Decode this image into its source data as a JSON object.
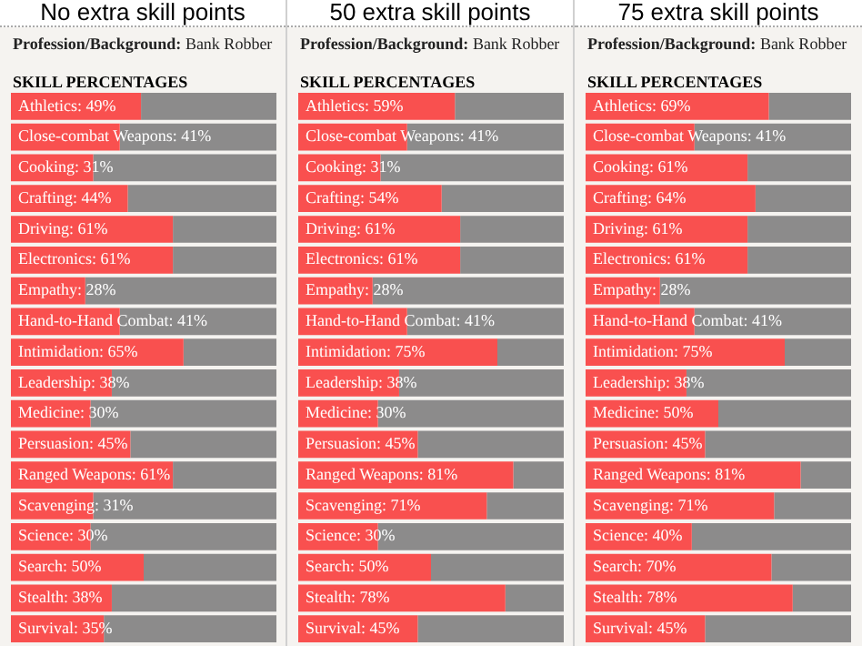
{
  "chart_data": [
    {
      "type": "bar",
      "orientation": "horizontal",
      "stacked": true,
      "title": "No extra skill points",
      "subtitle": "Profession/Background: Bank Robber",
      "annotations": [
        "SKILL PERCENTAGES"
      ],
      "xlim": [
        0,
        100
      ],
      "tick_labels": false,
      "legend": false,
      "categories": [
        null,
        null,
        null,
        null,
        null,
        null,
        null,
        null,
        null,
        null,
        null,
        null,
        null,
        null,
        null,
        null,
        null,
        null
      ],
      "series": [
        {
          "color": "#f9504f",
          "values": [
            49,
            41,
            31,
            44,
            61,
            61,
            28,
            41,
            65,
            38,
            30,
            45,
            61,
            31,
            30,
            50,
            38,
            35
          ],
          "value_labels": [
            "Athletics: 49%",
            "Close-combat Weapons: 41%",
            "Cooking: 31%",
            "Crafting: 44%",
            "Driving: 61%",
            "Electronics: 61%",
            "Empathy: 28%",
            "Hand-to-Hand Combat: 41%",
            "Intimidation: 65%",
            "Leadership: 38%",
            "Medicine: 30%",
            "Persuasion: 45%",
            "Ranged Weapons: 61%",
            "Scavenging: 31%",
            "Science: 30%",
            "Search: 50%",
            "Stealth: 38%",
            "Survival: 35%"
          ]
        },
        {
          "color": "#8c8b8b",
          "values": [
            51,
            59,
            69,
            56,
            39,
            39,
            72,
            59,
            35,
            62,
            70,
            55,
            39,
            69,
            70,
            50,
            62,
            65
          ]
        }
      ]
    },
    {
      "type": "bar",
      "orientation": "horizontal",
      "stacked": true,
      "title": "50 extra skill points",
      "subtitle": "Profession/Background: Bank Robber",
      "annotations": [
        "SKILL PERCENTAGES"
      ],
      "xlim": [
        0,
        100
      ],
      "tick_labels": false,
      "legend": false,
      "categories": [
        null,
        null,
        null,
        null,
        null,
        null,
        null,
        null,
        null,
        null,
        null,
        null,
        null,
        null,
        null,
        null,
        null,
        null
      ],
      "series": [
        {
          "color": "#f9504f",
          "values": [
            59,
            41,
            31,
            54,
            61,
            61,
            28,
            41,
            75,
            38,
            30,
            45,
            81,
            71,
            30,
            50,
            78,
            45
          ],
          "value_labels": [
            "Athletics: 59%",
            "Close-combat Weapons: 41%",
            "Cooking: 31%",
            "Crafting: 54%",
            "Driving: 61%",
            "Electronics: 61%",
            "Empathy: 28%",
            "Hand-to-Hand Combat: 41%",
            "Intimidation: 75%",
            "Leadership: 38%",
            "Medicine: 30%",
            "Persuasion: 45%",
            "Ranged Weapons: 81%",
            "Scavenging: 71%",
            "Science: 30%",
            "Search: 50%",
            "Stealth: 78%",
            "Survival: 45%"
          ]
        },
        {
          "color": "#8c8b8b",
          "values": [
            41,
            59,
            69,
            46,
            39,
            39,
            72,
            59,
            25,
            62,
            70,
            55,
            19,
            29,
            70,
            50,
            22,
            55
          ]
        }
      ]
    },
    {
      "type": "bar",
      "orientation": "horizontal",
      "stacked": true,
      "title": "75 extra skill points",
      "subtitle": "Profession/Background: Bank Robber",
      "annotations": [
        "SKILL PERCENTAGES"
      ],
      "xlim": [
        0,
        100
      ],
      "tick_labels": false,
      "legend": false,
      "categories": [
        null,
        null,
        null,
        null,
        null,
        null,
        null,
        null,
        null,
        null,
        null,
        null,
        null,
        null,
        null,
        null,
        null,
        null
      ],
      "series": [
        {
          "color": "#f9504f",
          "values": [
            69,
            41,
            61,
            64,
            61,
            61,
            28,
            41,
            75,
            38,
            50,
            45,
            81,
            71,
            40,
            70,
            78,
            45
          ],
          "value_labels": [
            "Athletics: 69%",
            "Close-combat Weapons: 41%",
            "Cooking: 61%",
            "Crafting: 64%",
            "Driving: 61%",
            "Electronics: 61%",
            "Empathy: 28%",
            "Hand-to-Hand Combat: 41%",
            "Intimidation: 75%",
            "Leadership: 38%",
            "Medicine: 50%",
            "Persuasion: 45%",
            "Ranged Weapons: 81%",
            "Scavenging: 71%",
            "Science: 40%",
            "Search: 70%",
            "Stealth: 78%",
            "Survival: 45%"
          ]
        },
        {
          "color": "#8c8b8b",
          "values": [
            31,
            59,
            39,
            36,
            39,
            39,
            72,
            59,
            25,
            62,
            50,
            55,
            19,
            29,
            60,
            30,
            22,
            55
          ]
        }
      ]
    }
  ]
}
